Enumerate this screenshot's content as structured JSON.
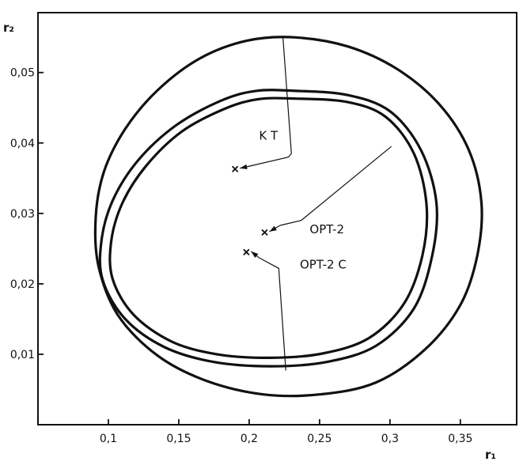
{
  "chart_data": {
    "type": "scatter",
    "xlabel": "r₁",
    "ylabel": "r₂",
    "xlim": [
      0.05,
      0.39
    ],
    "ylim": [
      0.0,
      0.0585
    ],
    "x_ticks": [
      {
        "value": 0.1,
        "label": "0,1"
      },
      {
        "value": 0.15,
        "label": "0,15"
      },
      {
        "value": 0.2,
        "label": "0,2"
      },
      {
        "value": 0.25,
        "label": "0,25"
      },
      {
        "value": 0.3,
        "label": "0,3"
      },
      {
        "value": 0.35,
        "label": "0,35"
      }
    ],
    "y_ticks": [
      {
        "value": 0.01,
        "label": "0,01"
      },
      {
        "value": 0.02,
        "label": "0,02"
      },
      {
        "value": 0.03,
        "label": "0,03"
      },
      {
        "value": 0.04,
        "label": "0,04"
      },
      {
        "value": 0.05,
        "label": "0,05"
      }
    ],
    "points": [
      {
        "label": "K T",
        "x": 0.19,
        "y": 0.0363
      },
      {
        "label": "OPT-2",
        "x": 0.211,
        "y": 0.0273
      },
      {
        "label": "OPT-2 C",
        "x": 0.198,
        "y": 0.0245
      }
    ],
    "contours": [
      {
        "id": "KT",
        "points": [
          [
            0.198,
            0.0545
          ],
          [
            0.232,
            0.055
          ],
          [
            0.27,
            0.0537
          ],
          [
            0.305,
            0.0505
          ],
          [
            0.335,
            0.0455
          ],
          [
            0.356,
            0.039
          ],
          [
            0.365,
            0.0315
          ],
          [
            0.362,
            0.024
          ],
          [
            0.35,
            0.017
          ],
          [
            0.325,
            0.0107
          ],
          [
            0.29,
            0.006
          ],
          [
            0.25,
            0.0043
          ],
          [
            0.21,
            0.0043
          ],
          [
            0.17,
            0.0062
          ],
          [
            0.135,
            0.0098
          ],
          [
            0.107,
            0.0155
          ],
          [
            0.093,
            0.0225
          ],
          [
            0.091,
            0.0295
          ],
          [
            0.097,
            0.036
          ],
          [
            0.112,
            0.042
          ],
          [
            0.135,
            0.0475
          ],
          [
            0.165,
            0.052
          ]
        ]
      },
      {
        "id": "OPT-2",
        "points": [
          [
            0.233,
            0.0474
          ],
          [
            0.27,
            0.0468
          ],
          [
            0.3,
            0.0445
          ],
          [
            0.322,
            0.039
          ],
          [
            0.333,
            0.0315
          ],
          [
            0.33,
            0.024
          ],
          [
            0.317,
            0.0165
          ],
          [
            0.29,
            0.0112
          ],
          [
            0.255,
            0.0089
          ],
          [
            0.215,
            0.0083
          ],
          [
            0.175,
            0.0089
          ],
          [
            0.14,
            0.011
          ],
          [
            0.112,
            0.015
          ],
          [
            0.096,
            0.0205
          ],
          [
            0.095,
            0.026
          ],
          [
            0.103,
            0.0318
          ],
          [
            0.121,
            0.0375
          ],
          [
            0.148,
            0.0425
          ],
          [
            0.18,
            0.046
          ],
          [
            0.205,
            0.0474
          ]
        ]
      },
      {
        "id": "OPT-2 C",
        "points": [
          [
            0.233,
            0.0463
          ],
          [
            0.27,
            0.0458
          ],
          [
            0.297,
            0.0437
          ],
          [
            0.317,
            0.0385
          ],
          [
            0.326,
            0.0312
          ],
          [
            0.323,
            0.024
          ],
          [
            0.31,
            0.0172
          ],
          [
            0.285,
            0.0123
          ],
          [
            0.252,
            0.0101
          ],
          [
            0.215,
            0.0095
          ],
          [
            0.177,
            0.01
          ],
          [
            0.145,
            0.0118
          ],
          [
            0.118,
            0.0156
          ],
          [
            0.103,
            0.0207
          ],
          [
            0.102,
            0.026
          ],
          [
            0.11,
            0.0315
          ],
          [
            0.127,
            0.0368
          ],
          [
            0.152,
            0.0416
          ],
          [
            0.182,
            0.0448
          ],
          [
            0.206,
            0.0462
          ]
        ]
      }
    ],
    "leaders": [
      {
        "for": "K T",
        "from": [
          0.19,
          0.0363
        ],
        "path": [
          [
            0.198,
            0.0366
          ],
          [
            0.228,
            0.038
          ],
          [
            0.23,
            0.0385
          ],
          [
            0.224,
            0.055
          ]
        ],
        "label_at": [
          0.207,
          0.0405
        ]
      },
      {
        "for": "OPT-2",
        "from": [
          0.211,
          0.0273
        ],
        "path": [
          [
            0.222,
            0.0283
          ],
          [
            0.237,
            0.029
          ],
          [
            0.301,
            0.0395
          ]
        ],
        "label_at": [
          0.243,
          0.0272
        ]
      },
      {
        "for": "OPT-2 C",
        "from": [
          0.198,
          0.0245
        ],
        "path": [
          [
            0.207,
            0.0237
          ],
          [
            0.221,
            0.0222
          ],
          [
            0.226,
            0.0077
          ]
        ],
        "label_at": [
          0.236,
          0.0222
        ]
      }
    ]
  }
}
